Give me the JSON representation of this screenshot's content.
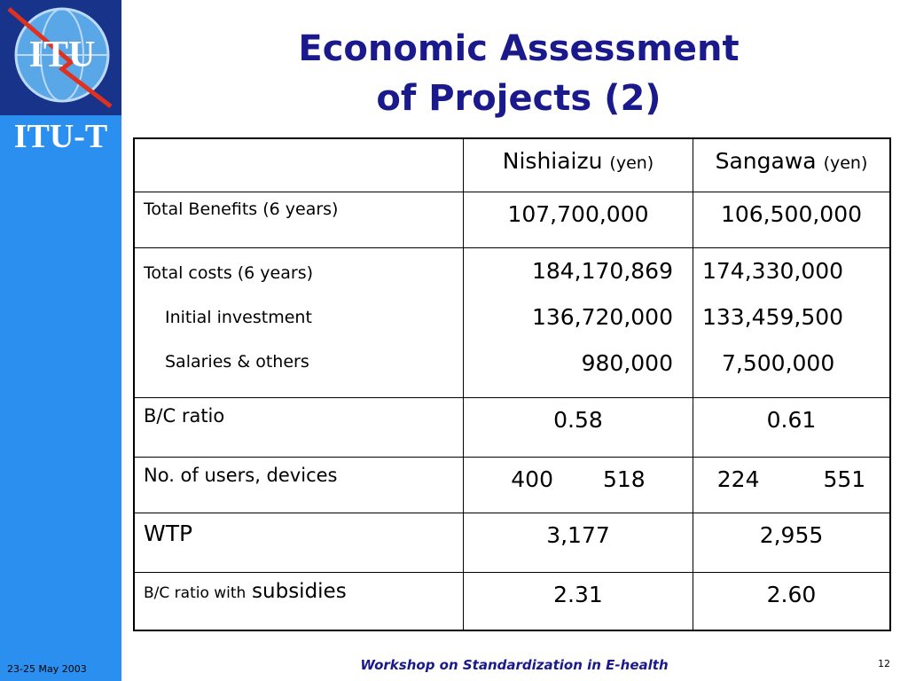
{
  "sidebar": {
    "logo": "ITU",
    "brand": "ITU-T",
    "date": "23-25 May 2003"
  },
  "title": [
    "Economic Assessment",
    "of Projects (2)"
  ],
  "table": {
    "header": [
      {
        "name": "Nishiaizu",
        "unit": "(yen)"
      },
      {
        "name": "Sangawa",
        "unit": "(yen)"
      }
    ],
    "rows": [
      {
        "label": [
          "Total Benefits (6 years)"
        ],
        "cells": [
          [
            "107,700,000"
          ],
          [
            "106,500,000"
          ]
        ]
      },
      {
        "label": [
          "Total costs (6 years)",
          "Initial investment",
          "Salaries & others"
        ],
        "cells": [
          [
            "184,170,869",
            "136,720,000",
            "980,000"
          ],
          [
            "174,330,000",
            "133,459,500",
            "7,500,000"
          ]
        ]
      },
      {
        "label": [
          "B/C ratio"
        ],
        "cells": [
          [
            "0.58"
          ],
          [
            "0.61"
          ]
        ]
      },
      {
        "label": [
          "No. of users, devices"
        ],
        "cells": [
          [
            "400",
            "518"
          ],
          [
            "224",
            "551"
          ]
        ]
      },
      {
        "label": [
          "WTP"
        ],
        "cells": [
          [
            "3,177"
          ],
          [
            "2,955"
          ]
        ]
      },
      {
        "label": [
          "B/C ratio with",
          "subsidies"
        ],
        "cells": [
          [
            "2.31"
          ],
          [
            "2.60"
          ]
        ]
      }
    ]
  },
  "footer": {
    "event": "Workshop on Standardization in E-health",
    "page": "12"
  }
}
